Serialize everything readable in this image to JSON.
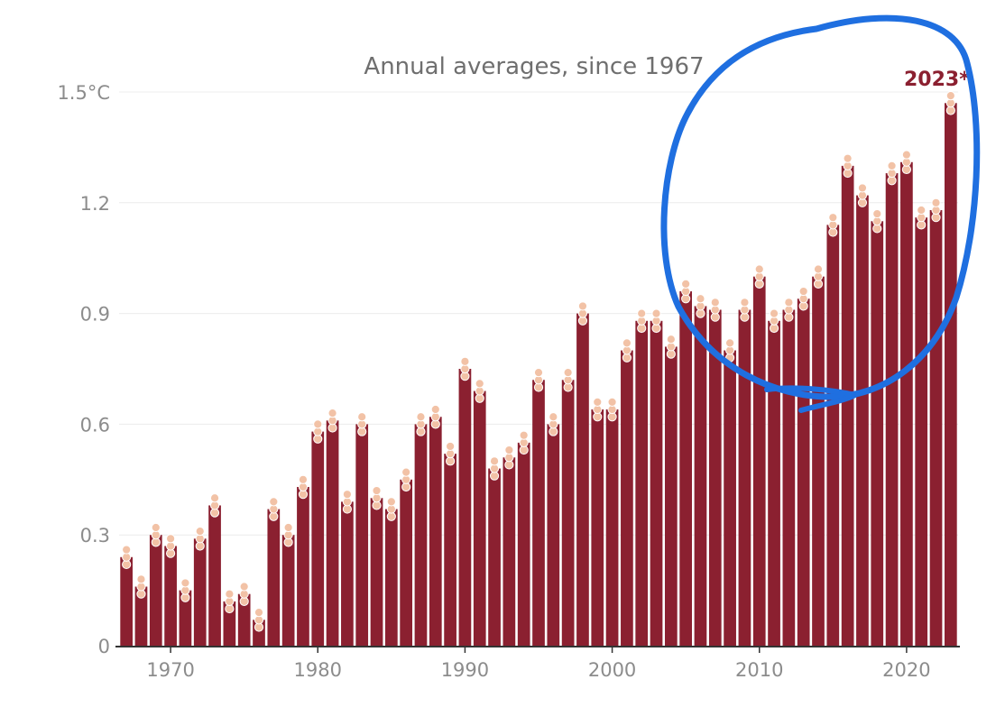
{
  "chart_data": {
    "type": "bar",
    "title": "Annual averages, since 1967",
    "xlabel": "",
    "ylabel": "",
    "y_ticks": [
      "0",
      "0.3",
      "0.6",
      "0.9",
      "1.2",
      "1.5°C"
    ],
    "x_ticks": [
      "1970",
      "1980",
      "1990",
      "2000",
      "2010",
      "2020"
    ],
    "highlight_label": "2023*",
    "ylim": [
      0,
      1.5
    ],
    "grid": true,
    "bar_color": "#8b2030",
    "dot_color": "#f2c2a6",
    "annotation_color": "#1f6fe0",
    "categories": [
      1967,
      1968,
      1969,
      1970,
      1971,
      1972,
      1973,
      1974,
      1975,
      1976,
      1977,
      1978,
      1979,
      1980,
      1981,
      1982,
      1983,
      1984,
      1985,
      1986,
      1987,
      1988,
      1989,
      1990,
      1991,
      1992,
      1993,
      1994,
      1995,
      1996,
      1997,
      1998,
      1999,
      2000,
      2001,
      2002,
      2003,
      2004,
      2005,
      2006,
      2007,
      2008,
      2009,
      2010,
      2011,
      2012,
      2013,
      2014,
      2015,
      2016,
      2017,
      2018,
      2019,
      2020,
      2021,
      2022,
      2023
    ],
    "values": [
      0.24,
      0.16,
      0.3,
      0.27,
      0.15,
      0.29,
      0.38,
      0.12,
      0.14,
      0.07,
      0.37,
      0.3,
      0.43,
      0.58,
      0.61,
      0.39,
      0.6,
      0.4,
      0.37,
      0.45,
      0.6,
      0.62,
      0.52,
      0.75,
      0.69,
      0.48,
      0.51,
      0.55,
      0.72,
      0.6,
      0.72,
      0.9,
      0.64,
      0.64,
      0.8,
      0.88,
      0.88,
      0.81,
      0.96,
      0.92,
      0.91,
      0.8,
      0.91,
      1.0,
      0.88,
      0.91,
      0.94,
      1.0,
      1.14,
      1.3,
      1.22,
      1.15,
      1.28,
      1.31,
      1.16,
      1.18,
      1.47
    ]
  },
  "annotation": {
    "type": "hand-drawn-circle",
    "target": "2005–2023 bars"
  }
}
